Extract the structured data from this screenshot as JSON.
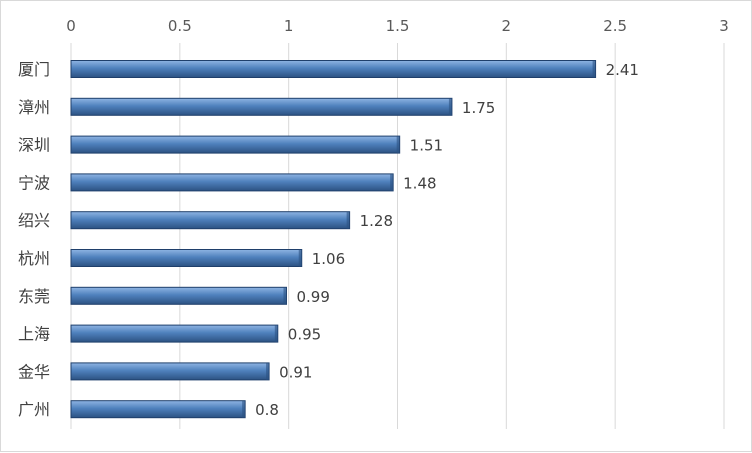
{
  "chart_data": {
    "type": "bar",
    "orientation": "horizontal",
    "categories": [
      "厦门",
      "漳州",
      "深圳",
      "宁波",
      "绍兴",
      "杭州",
      "东莞",
      "上海",
      "金华",
      "广州"
    ],
    "values": [
      2.41,
      1.75,
      1.51,
      1.48,
      1.28,
      1.06,
      0.99,
      0.95,
      0.91,
      0.8
    ],
    "value_labels": [
      "2.41",
      "1.75",
      "1.51",
      "1.48",
      "1.28",
      "1.06",
      "0.99",
      "0.95",
      "0.91",
      "0.8"
    ],
    "xlim": [
      0,
      3
    ],
    "ticks": [
      "0",
      "0.5",
      "1",
      "1.5",
      "2",
      "2.5",
      "3"
    ],
    "tick_values": [
      0,
      0.5,
      1,
      1.5,
      2,
      2.5,
      3
    ],
    "axis_position": "top",
    "grid": true,
    "legend": "none",
    "colors": {
      "bar_fill_top": "#8fb4e3",
      "bar_fill_mid": "#4f81bd",
      "bar_fill_bottom": "#2c5282",
      "bar_edge": "#1f3f6b",
      "grid": "#d9d9d9"
    }
  }
}
